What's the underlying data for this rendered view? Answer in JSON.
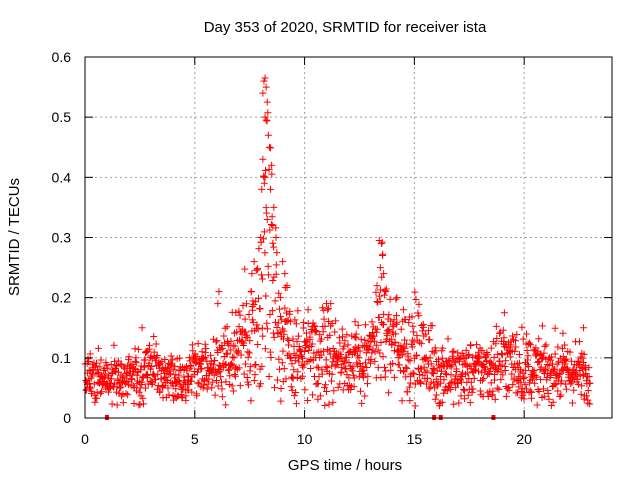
{
  "chart_data": {
    "type": "scatter",
    "title": "Day 353 of 2020, SRMTID for receiver ista",
    "xlabel": "GPS time / hours",
    "ylabel": "SRMTID / TECUs",
    "xlim": [
      0,
      24
    ],
    "ylim": [
      0,
      0.6
    ],
    "xticks": [
      0,
      5,
      10,
      15,
      20
    ],
    "yticks": [
      0,
      0.1,
      0.2,
      0.3,
      0.4,
      0.5,
      0.6
    ],
    "xtick_labels": [
      "0",
      "5",
      "10",
      "15",
      "20"
    ],
    "ytick_labels": [
      "0",
      "0.1",
      "0.2",
      "0.3",
      "0.4",
      "0.5",
      "0.6"
    ],
    "grid": true,
    "marker_color": "#ff0000",
    "marker": "plus",
    "data_span_hours": [
      0,
      23
    ],
    "profile": [
      [
        0.0,
        0.065,
        0.02
      ],
      [
        0.5,
        0.065,
        0.02
      ],
      [
        1.0,
        0.07,
        0.02
      ],
      [
        1.5,
        0.065,
        0.02
      ],
      [
        2.0,
        0.065,
        0.02
      ],
      [
        2.5,
        0.075,
        0.025
      ],
      [
        3.0,
        0.08,
        0.025
      ],
      [
        3.5,
        0.07,
        0.02
      ],
      [
        4.0,
        0.065,
        0.02
      ],
      [
        4.5,
        0.075,
        0.02
      ],
      [
        5.0,
        0.085,
        0.02
      ],
      [
        5.5,
        0.08,
        0.025
      ],
      [
        6.0,
        0.09,
        0.03
      ],
      [
        6.5,
        0.1,
        0.035
      ],
      [
        7.0,
        0.11,
        0.04
      ],
      [
        7.5,
        0.13,
        0.05
      ],
      [
        7.8,
        0.16,
        0.06
      ],
      [
        8.0,
        0.22,
        0.08
      ],
      [
        8.2,
        0.3,
        0.1
      ],
      [
        8.4,
        0.35,
        0.12
      ],
      [
        8.6,
        0.22,
        0.08
      ],
      [
        9.0,
        0.13,
        0.05
      ],
      [
        9.5,
        0.1,
        0.04
      ],
      [
        10.0,
        0.1,
        0.035
      ],
      [
        10.5,
        0.1,
        0.04
      ],
      [
        11.0,
        0.11,
        0.04
      ],
      [
        11.5,
        0.1,
        0.035
      ],
      [
        12.0,
        0.1,
        0.03
      ],
      [
        12.5,
        0.09,
        0.03
      ],
      [
        13.0,
        0.1,
        0.03
      ],
      [
        13.3,
        0.14,
        0.05
      ],
      [
        13.5,
        0.19,
        0.06
      ],
      [
        13.7,
        0.14,
        0.04
      ],
      [
        14.0,
        0.12,
        0.04
      ],
      [
        14.5,
        0.12,
        0.04
      ],
      [
        15.0,
        0.11,
        0.04
      ],
      [
        15.5,
        0.1,
        0.035
      ],
      [
        16.0,
        0.08,
        0.03
      ],
      [
        16.5,
        0.075,
        0.025
      ],
      [
        17.0,
        0.07,
        0.025
      ],
      [
        17.5,
        0.075,
        0.025
      ],
      [
        18.0,
        0.08,
        0.025
      ],
      [
        18.5,
        0.085,
        0.03
      ],
      [
        19.0,
        0.1,
        0.035
      ],
      [
        19.5,
        0.09,
        0.03
      ],
      [
        20.0,
        0.085,
        0.03
      ],
      [
        20.5,
        0.08,
        0.025
      ],
      [
        21.0,
        0.08,
        0.025
      ],
      [
        21.5,
        0.08,
        0.025
      ],
      [
        22.0,
        0.075,
        0.025
      ],
      [
        22.5,
        0.075,
        0.025
      ],
      [
        23.0,
        0.06,
        0.02
      ]
    ],
    "extra_points": [
      [
        8.15,
        0.56
      ],
      [
        8.2,
        0.565
      ],
      [
        8.25,
        0.55
      ],
      [
        8.1,
        0.54
      ],
      [
        8.3,
        0.525
      ],
      [
        8.2,
        0.5
      ],
      [
        8.25,
        0.495
      ],
      [
        8.35,
        0.47
      ],
      [
        8.4,
        0.45
      ],
      [
        8.5,
        0.42
      ],
      [
        8.1,
        0.43
      ],
      [
        8.2,
        0.4
      ],
      [
        8.45,
        0.38
      ],
      [
        8.6,
        0.35
      ],
      [
        8.05,
        0.38
      ],
      [
        8.55,
        0.32
      ],
      [
        8.7,
        0.3
      ],
      [
        8.3,
        0.33
      ],
      [
        8.0,
        0.3
      ],
      [
        7.7,
        0.26
      ],
      [
        7.6,
        0.24
      ],
      [
        9.0,
        0.26
      ],
      [
        9.1,
        0.24
      ],
      [
        9.2,
        0.22
      ],
      [
        8.9,
        0.2
      ],
      [
        13.4,
        0.295
      ],
      [
        13.5,
        0.29
      ],
      [
        13.55,
        0.27
      ],
      [
        13.45,
        0.25
      ],
      [
        13.6,
        0.24
      ],
      [
        13.3,
        0.22
      ],
      [
        13.7,
        0.21
      ],
      [
        11.0,
        0.19
      ],
      [
        11.05,
        0.18
      ],
      [
        19.1,
        0.175
      ],
      [
        22.7,
        0.15
      ],
      [
        2.6,
        0.15
      ],
      [
        6.1,
        0.21
      ],
      [
        6.05,
        0.19
      ],
      [
        14.2,
        0.2
      ],
      [
        14.5,
        0.18
      ],
      [
        12.3,
        0.16
      ],
      [
        15.2,
        0.17
      ]
    ],
    "gap_markers_hours": [
      1.0,
      15.9,
      16.2,
      18.6
    ]
  }
}
